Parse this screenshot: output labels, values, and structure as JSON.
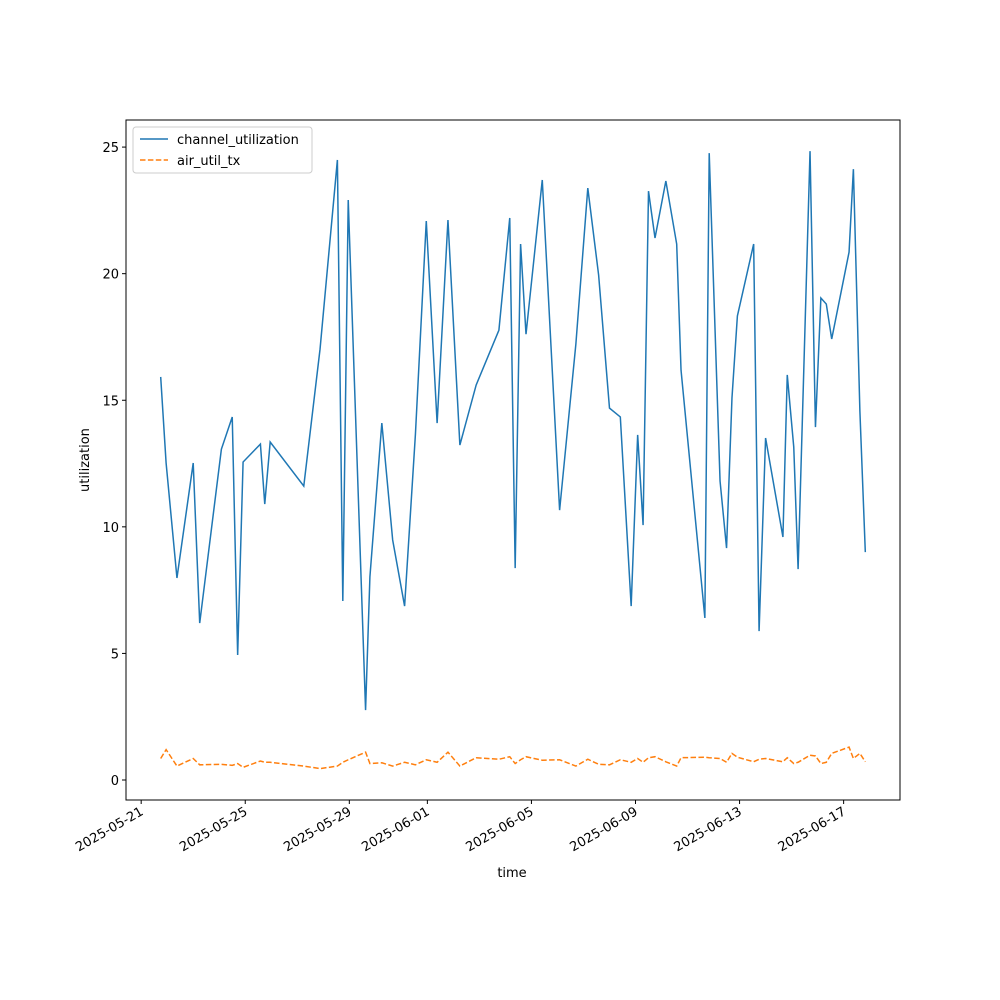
{
  "chart_data": {
    "type": "line",
    "xlabel": "time",
    "ylabel": "utilization",
    "x": [
      "2025-05-21T18:00",
      "2025-05-21T23:00",
      "2025-05-22T09:00",
      "2025-05-23T00:00",
      "2025-05-23T06:00",
      "2025-05-24T02:00",
      "2025-05-24T12:00",
      "2025-05-24T17:00",
      "2025-05-24T22:00",
      "2025-05-25T14:00",
      "2025-05-25T18:00",
      "2025-05-25T23:00",
      "2025-05-27T06:00",
      "2025-05-27T21:00",
      "2025-05-28T13:00",
      "2025-05-28T18:00",
      "2025-05-28T23:00",
      "2025-05-29T15:00",
      "2025-05-29T19:00",
      "2025-05-30T06:00",
      "2025-05-30T16:00",
      "2025-05-31T03:00",
      "2025-05-31T13:00",
      "2025-05-31T23:00",
      "2025-06-01T09:00",
      "2025-06-01T19:00",
      "2025-06-02T06:00",
      "2025-06-02T21:00",
      "2025-06-03T18:00",
      "2025-06-04T04:00",
      "2025-06-04T09:00",
      "2025-06-04T14:00",
      "2025-06-04T19:00",
      "2025-06-05T10:00",
      "2025-06-06T02:00",
      "2025-06-06T17:00",
      "2025-06-07T04:00",
      "2025-06-07T14:00",
      "2025-06-08T00:00",
      "2025-06-08T10:00",
      "2025-06-08T20:00",
      "2025-06-09T02:00",
      "2025-06-09T07:00",
      "2025-06-09T12:00",
      "2025-06-09T18:00",
      "2025-06-10T04:00",
      "2025-06-10T14:00",
      "2025-06-10T18:00",
      "2025-06-11T16:00",
      "2025-06-11T20:00",
      "2025-06-12T06:00",
      "2025-06-12T12:00",
      "2025-06-12T17:00",
      "2025-06-12T22:00",
      "2025-06-13T13:00",
      "2025-06-13T18:00",
      "2025-06-14T00:00",
      "2025-06-14T16:00",
      "2025-06-14T20:00",
      "2025-06-15T02:00",
      "2025-06-15T06:00",
      "2025-06-15T17:00",
      "2025-06-15T22:00",
      "2025-06-16T03:00",
      "2025-06-16T08:00",
      "2025-06-16T13:00",
      "2025-06-17T05:00",
      "2025-06-17T09:00",
      "2025-06-17T15:00",
      "2025-06-17T20:00"
    ],
    "series": [
      {
        "name": "channel_utilization",
        "color": "#1f77b4",
        "linestyle": "solid",
        "values": [
          15.92,
          12.52,
          7.98,
          12.52,
          6.2,
          13.07,
          14.34,
          4.94,
          12.56,
          13.27,
          10.9,
          13.35,
          11.61,
          17.02,
          24.49,
          7.07,
          22.91,
          2.76,
          8.02,
          14.1,
          9.48,
          6.87,
          13.67,
          22.08,
          14.1,
          22.12,
          13.23,
          15.6,
          17.77,
          22.2,
          8.37,
          21.17,
          17.61,
          23.7,
          10.66,
          17.22,
          23.38,
          19.94,
          14.69,
          14.34,
          6.87,
          13.63,
          10.07,
          23.26,
          21.41,
          23.66,
          21.17,
          16.19,
          6.4,
          24.76,
          11.81,
          9.16,
          15.09,
          18.33,
          21.17,
          5.88,
          13.51,
          9.6,
          16.0,
          13.15,
          8.33,
          24.84,
          13.94,
          19.04,
          18.8,
          17.42,
          20.85,
          24.13,
          14.57,
          9.0
        ]
      },
      {
        "name": "air_util_tx",
        "color": "#ff7f0e",
        "linestyle": "dashed",
        "values": [
          0.85,
          1.2,
          0.55,
          0.85,
          0.6,
          0.62,
          0.58,
          0.65,
          0.5,
          0.75,
          0.7,
          0.7,
          0.55,
          0.45,
          0.55,
          0.7,
          0.8,
          1.1,
          0.65,
          0.68,
          0.55,
          0.7,
          0.6,
          0.8,
          0.7,
          1.1,
          0.55,
          0.88,
          0.82,
          0.92,
          0.65,
          0.8,
          0.92,
          0.78,
          0.8,
          0.55,
          0.82,
          0.62,
          0.6,
          0.8,
          0.7,
          0.85,
          0.7,
          0.88,
          0.92,
          0.72,
          0.55,
          0.88,
          0.9,
          0.88,
          0.85,
          0.7,
          1.05,
          0.9,
          0.72,
          0.82,
          0.85,
          0.72,
          0.88,
          0.65,
          0.7,
          0.98,
          0.95,
          0.65,
          0.7,
          1.05,
          1.3,
          0.85,
          1.05,
          0.72
        ]
      }
    ],
    "xlim": [
      "2025-05-20T10:00",
      "2025-06-19T04:00"
    ],
    "xticks": [
      "2025-05-21",
      "2025-05-25",
      "2025-05-29",
      "2025-06-01",
      "2025-06-05",
      "2025-06-09",
      "2025-06-13",
      "2025-06-17"
    ],
    "ylim": [
      -0.79,
      26.07
    ],
    "yticks": [
      0,
      5,
      10,
      15,
      20,
      25
    ],
    "legend": "upper left"
  }
}
